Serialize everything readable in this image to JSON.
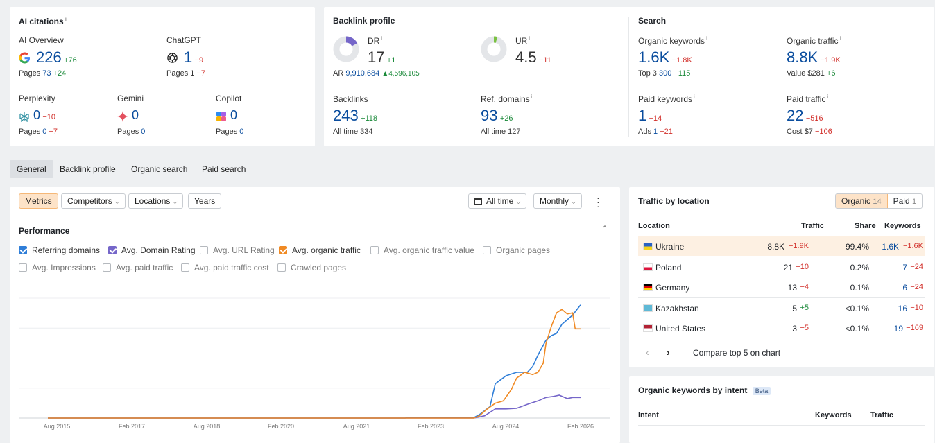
{
  "ai_citations": {
    "title": "AI citations",
    "ai_overview": {
      "label": "AI Overview",
      "value": "226",
      "delta": "+76",
      "pages_label": "Pages",
      "pages": "73",
      "pages_delta": "+24"
    },
    "chatgpt": {
      "label": "ChatGPT",
      "value": "1",
      "delta": "−9",
      "pages_label": "Pages",
      "pages": "1",
      "pages_delta": "−7"
    },
    "perplexity": {
      "label": "Perplexity",
      "value": "0",
      "delta": "−10",
      "pages_label": "Pages",
      "pages": "0",
      "pages_delta": "−7"
    },
    "gemini": {
      "label": "Gemini",
      "value": "0",
      "pages_label": "Pages",
      "pages": "0"
    },
    "copilot": {
      "label": "Copilot",
      "value": "0",
      "pages_label": "Pages",
      "pages": "0"
    }
  },
  "backlink_profile": {
    "title": "Backlink profile",
    "dr": {
      "label": "DR",
      "value": "17",
      "delta": "+1",
      "ar_label": "AR",
      "ar": "9,910,684",
      "ar_delta": "▲4,596,105",
      "ring_fill": 0.17
    },
    "ur": {
      "label": "UR",
      "value": "4.5",
      "delta": "−11",
      "ring_fill": 0.045
    },
    "backlinks": {
      "label": "Backlinks",
      "value": "243",
      "delta": "+118",
      "sub_label": "All time",
      "sub": "334"
    },
    "ref_domains": {
      "label": "Ref. domains",
      "value": "93",
      "delta": "+26",
      "sub_label": "All time",
      "sub": "127"
    }
  },
  "search": {
    "title": "Search",
    "organic_keywords": {
      "label": "Organic keywords",
      "value": "1.6K",
      "delta": "−1.8K",
      "sub_label": "Top 3",
      "sub": "300",
      "sub_delta": "+115"
    },
    "organic_traffic": {
      "label": "Organic traffic",
      "value": "8.8K",
      "delta": "−1.9K",
      "sub_label": "Value",
      "sub": "$281",
      "sub_delta": "+6"
    },
    "paid_keywords": {
      "label": "Paid keywords",
      "value": "1",
      "delta": "−14",
      "sub_label": "Ads",
      "sub": "1",
      "sub_delta": "−21"
    },
    "paid_traffic": {
      "label": "Paid traffic",
      "value": "22",
      "delta": "−516",
      "sub_label": "Cost",
      "sub": "$7",
      "sub_delta": "−106"
    }
  },
  "tabs": [
    "General",
    "Backlink profile",
    "Organic search",
    "Paid search"
  ],
  "toolbar": {
    "metrics": "Metrics",
    "competitors": "Competitors",
    "locations": "Locations",
    "years": "Years",
    "all_time": "All time",
    "monthly": "Monthly"
  },
  "performance": {
    "title": "Performance",
    "checkboxes": [
      {
        "label": "Referring domains",
        "checked": true,
        "color": "#2f7ed8"
      },
      {
        "label": "Avg. Domain Rating",
        "checked": true,
        "color": "#7566c9"
      },
      {
        "label": "Avg. URL Rating",
        "checked": false
      },
      {
        "label": "Avg. organic traffic",
        "checked": true,
        "color": "#f08a24"
      },
      {
        "label": "Avg. organic traffic value",
        "checked": false
      },
      {
        "label": "Organic pages",
        "checked": false
      },
      {
        "label": "Avg. Impressions",
        "checked": false
      },
      {
        "label": "Avg. paid traffic",
        "checked": false
      },
      {
        "label": "Avg. paid traffic cost",
        "checked": false
      },
      {
        "label": "Crawled pages",
        "checked": false
      }
    ]
  },
  "chart_data": {
    "type": "line",
    "x_ticks": [
      "Aug 2015",
      "Feb 2017",
      "Aug 2018",
      "Feb 2020",
      "Aug 2021",
      "Feb 2023",
      "Aug 2024",
      "Feb 2026"
    ],
    "series": [
      {
        "name": "Referring domains",
        "color": "#2f7ed8",
        "points": [
          [
            0,
            0
          ],
          [
            0.67,
            0
          ],
          [
            0.68,
            0.005
          ],
          [
            0.8,
            0.005
          ],
          [
            0.81,
            0.03
          ],
          [
            0.83,
            0.1
          ],
          [
            0.84,
            0.3
          ],
          [
            0.86,
            0.37
          ],
          [
            0.88,
            0.4
          ],
          [
            0.9,
            0.4
          ],
          [
            0.91,
            0.45
          ],
          [
            0.92,
            0.55
          ],
          [
            0.935,
            0.68
          ],
          [
            0.945,
            0.72
          ],
          [
            0.955,
            0.74
          ],
          [
            0.965,
            0.82
          ],
          [
            0.975,
            0.86
          ],
          [
            0.985,
            0.9
          ],
          [
            1,
            0.99
          ]
        ]
      },
      {
        "name": "Avg. Domain Rating",
        "color": "#7566c9",
        "points": [
          [
            0,
            0
          ],
          [
            0.8,
            0
          ],
          [
            0.82,
            0.02
          ],
          [
            0.84,
            0.08
          ],
          [
            0.86,
            0.08
          ],
          [
            0.88,
            0.085
          ],
          [
            0.9,
            0.12
          ],
          [
            0.92,
            0.15
          ],
          [
            0.935,
            0.18
          ],
          [
            0.95,
            0.19
          ],
          [
            0.96,
            0.2
          ],
          [
            0.975,
            0.17
          ],
          [
            0.985,
            0.18
          ],
          [
            1,
            0.18
          ]
        ]
      },
      {
        "name": "Avg. organic traffic",
        "color": "#f08a24",
        "points": [
          [
            0,
            0
          ],
          [
            0.8,
            0
          ],
          [
            0.81,
            0.02
          ],
          [
            0.825,
            0.08
          ],
          [
            0.84,
            0.13
          ],
          [
            0.855,
            0.15
          ],
          [
            0.87,
            0.25
          ],
          [
            0.88,
            0.35
          ],
          [
            0.895,
            0.4
          ],
          [
            0.91,
            0.38
          ],
          [
            0.92,
            0.4
          ],
          [
            0.93,
            0.48
          ],
          [
            0.935,
            0.65
          ],
          [
            0.945,
            0.8
          ],
          [
            0.955,
            0.92
          ],
          [
            0.965,
            0.95
          ],
          [
            0.975,
            0.91
          ],
          [
            0.985,
            0.92
          ],
          [
            0.99,
            0.78
          ],
          [
            1,
            0.78
          ]
        ]
      }
    ]
  },
  "traffic_by_location": {
    "title": "Traffic by location",
    "toggle_organic": "Organic",
    "toggle_organic_count": "14",
    "toggle_paid": "Paid",
    "toggle_paid_count": "1",
    "headers": [
      "Location",
      "Traffic",
      "Share",
      "Keywords"
    ],
    "rows": [
      {
        "name": "Ukraine",
        "traffic": "8.8K",
        "traffic_delta": "−1.9K",
        "share": "99.4%",
        "kw": "1.6K",
        "kw_delta": "−1.6K",
        "flag": [
          "#2a62c4",
          "#f7d21c"
        ]
      },
      {
        "name": "Poland",
        "traffic": "21",
        "traffic_delta": "−10",
        "share": "0.2%",
        "kw": "7",
        "kw_delta": "−24",
        "flag": [
          "#ffffff",
          "#dc143c"
        ]
      },
      {
        "name": "Germany",
        "traffic": "13",
        "traffic_delta": "−4",
        "share": "0.1%",
        "kw": "6",
        "kw_delta": "−24",
        "flag": [
          "#000000",
          "#dd0000",
          "#ffce00"
        ]
      },
      {
        "name": "Kazakhstan",
        "traffic": "5",
        "traffic_delta": "+5",
        "share": "<0.1%",
        "kw": "16",
        "kw_delta": "−10",
        "flag": [
          "#5fb9d6",
          "#5fb9d6"
        ]
      },
      {
        "name": "United States",
        "traffic": "3",
        "traffic_delta": "−5",
        "share": "<0.1%",
        "kw": "19",
        "kw_delta": "−169",
        "flag": [
          "#b22234",
          "#ffffff"
        ]
      }
    ],
    "compare": "Compare top 5 on chart"
  },
  "intent": {
    "title": "Organic keywords by intent",
    "beta": "Beta",
    "headers": [
      "Intent",
      "Keywords",
      "Traffic"
    ]
  }
}
